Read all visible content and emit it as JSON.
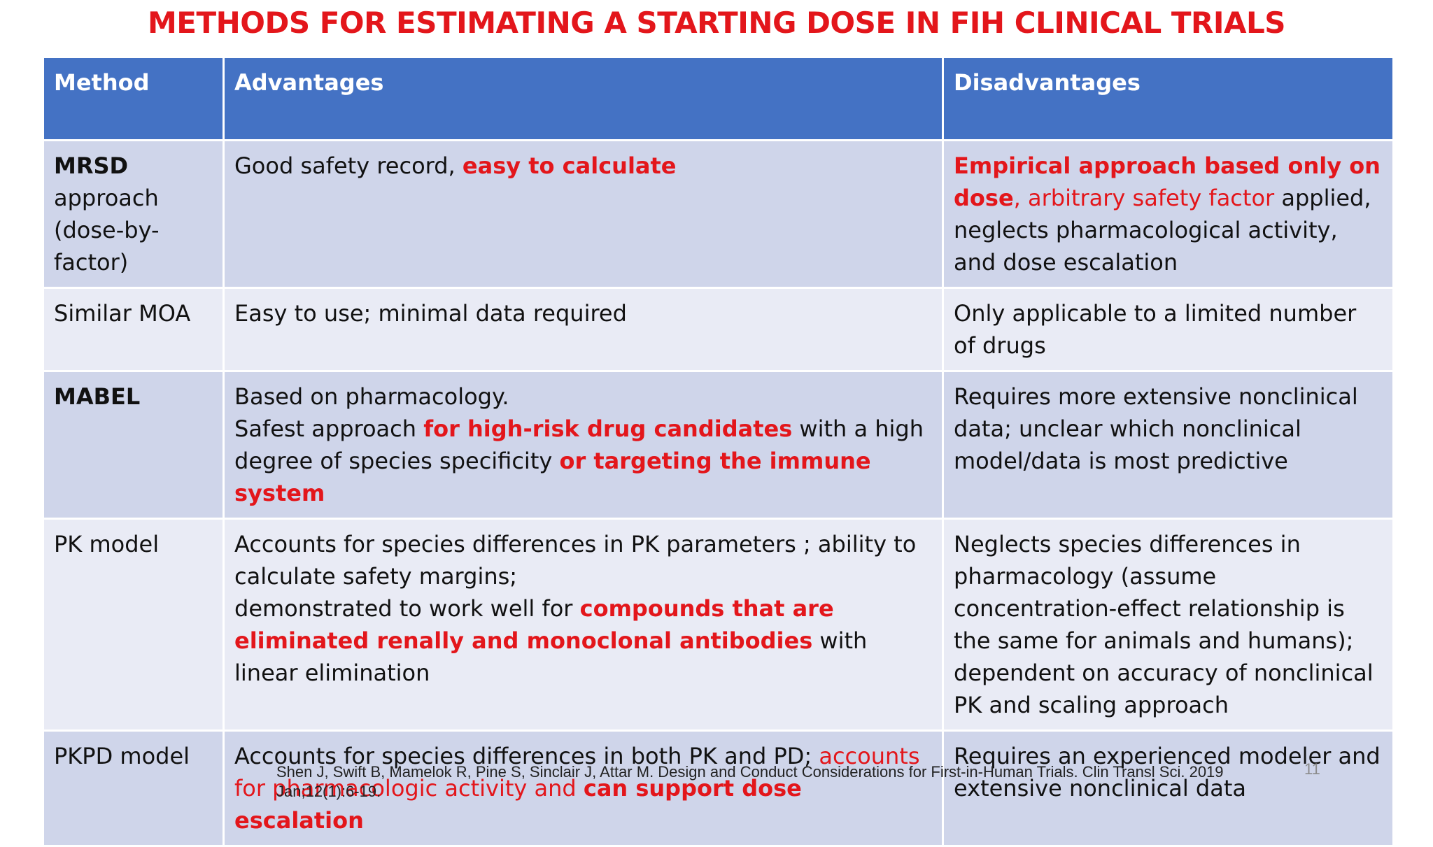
{
  "title": "METHODS FOR ESTIMATING A STARTING DOSE IN FIH CLINICAL TRIALS",
  "table": {
    "headers": {
      "method": "Method",
      "advantages": "Advantages",
      "disadvantages": "Disadvantages"
    },
    "rows": [
      {
        "method": {
          "line1": "MRSD",
          "line2": "approach",
          "line3": "(dose-by-",
          "line4": "factor)"
        },
        "advantages": {
          "a": "Good safety record, ",
          "b": "easy to calculate"
        },
        "disadvantages": {
          "a": "Empirical approach based only on dose",
          "b": ", arbitrary safety factor",
          "c": " applied, neglects pharmacological activity, and dose escalation"
        }
      },
      {
        "method": "Similar MOA",
        "advantages": "Easy to use; minimal data required",
        "disadvantages": "Only applicable to a limited number of drugs"
      },
      {
        "method": "MABEL",
        "advantages": {
          "a": "Based on pharmacology.",
          "b": "Safest approach ",
          "c": "for high-risk drug candidates",
          "d": " with a high degree of species specificity ",
          "e": "or targeting the immune system"
        },
        "disadvantages": "Requires more extensive nonclinical data; unclear which nonclinical model/data is most predictive"
      },
      {
        "method": "PK model",
        "advantages": {
          "a": "Accounts for species differences in PK parameters ; ability to calculate safety margins;",
          "b": "demonstrated to work well for ",
          "c": "compounds that are eliminated renally and monoclonal antibodies",
          "d": " with linear elimination"
        },
        "disadvantages": "Neglects species differences in pharmacology (assume concentration-effect relationship is the same for animals and humans); dependent on accuracy of nonclinical PK and scaling approach"
      },
      {
        "method": "PKPD model",
        "advantages": {
          "a": "Accounts for species differences in both PK and PD; ",
          "b": "accounts for pharmacologic activity and ",
          "c": "can support dose escalation"
        },
        "disadvantages": "Requires an experienced modeler and extensive nonclinical data"
      }
    ]
  },
  "citation": "Shen J, Swift B, Mamelok R, Pine S, Sinclair J, Attar M. Design and Conduct Considerations for First-in-Human Trials. Clin Transl Sci. 2019 Jan;12(1):6-19.",
  "page_number": "11",
  "colors": {
    "title_red": "#e3161b",
    "header_blue": "#4472c4",
    "row_dark": "#cfd5ea",
    "row_light": "#e9ebf5"
  }
}
